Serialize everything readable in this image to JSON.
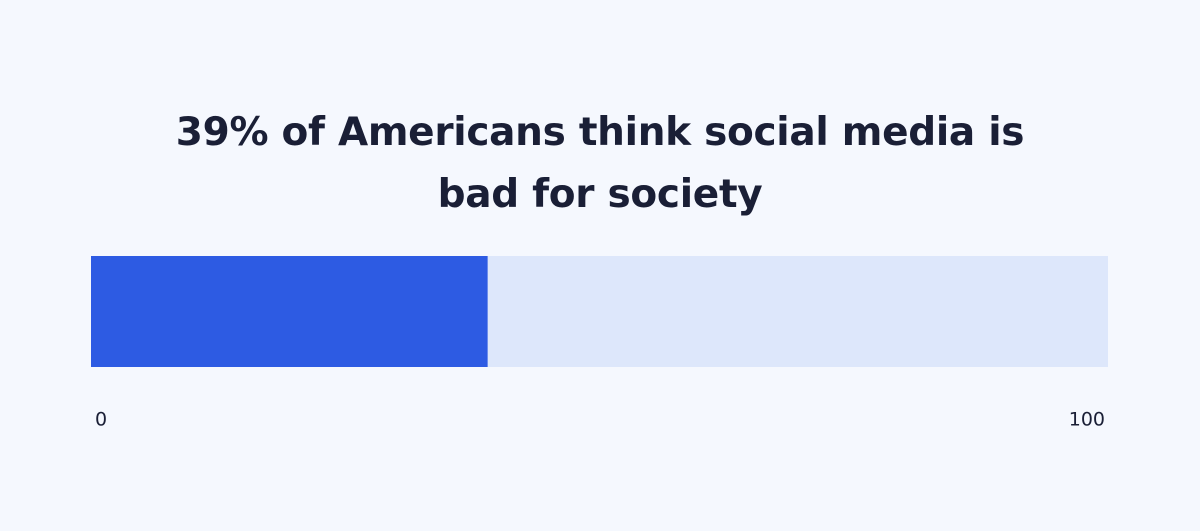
{
  "chart_data": {
    "type": "progress-bar",
    "title": "39% of Americans think social media is bad for society",
    "values": [
      39
    ],
    "color": "#2d5be3",
    "track_color": "#dde7fb",
    "xlim": [
      0,
      100
    ],
    "xticks": [
      0,
      100
    ]
  }
}
